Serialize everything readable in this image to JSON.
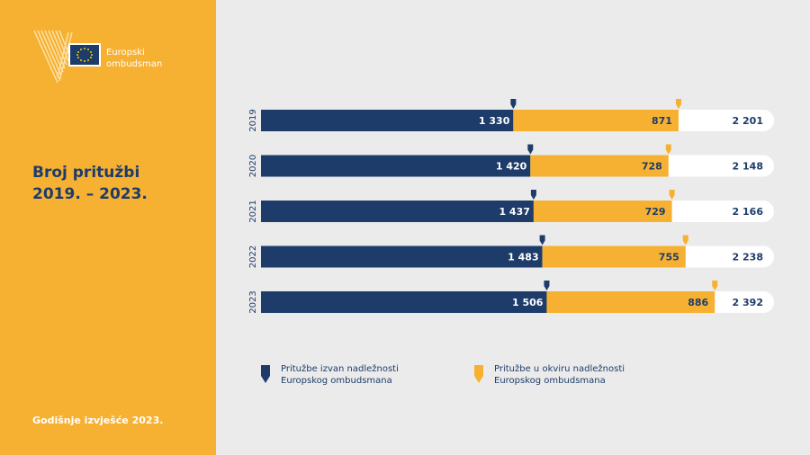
{
  "brand": {
    "name": "Europski\nombudsman"
  },
  "title": "Broj pritužbi\n2019. – 2023.",
  "footer": "Godišnje izvješće 2023.",
  "colors": {
    "navy": "#1d3c6a",
    "orange": "#f7b132",
    "white": "#ffffff"
  },
  "legend": [
    {
      "label": "Pritužbe izvan nadležnosti\nEuropskog ombudsmana",
      "color": "#1d3c6a",
      "icon": "navy-marker-icon"
    },
    {
      "label": "Pritužbe u okviru nadležnosti\nEuropskog ombudsmana",
      "color": "#f7b132",
      "icon": "orange-marker-icon"
    }
  ],
  "chart_data": {
    "type": "bar",
    "orientation": "horizontal",
    "stacked": true,
    "categories": [
      "2019",
      "2020",
      "2021",
      "2022",
      "2023"
    ],
    "series": [
      {
        "name": "Pritužbe izvan nadležnosti Europskog ombudsmana",
        "color": "#1d3c6a",
        "values": [
          1330,
          1420,
          1437,
          1483,
          1506
        ],
        "labels": [
          "1 330",
          "1 420",
          "1 437",
          "1 483",
          "1 506"
        ]
      },
      {
        "name": "Pritužbe u okviru nadležnosti Europskog ombudsmana",
        "color": "#f7b132",
        "values": [
          871,
          728,
          729,
          755,
          886
        ],
        "labels": [
          "871",
          "728",
          "729",
          "755",
          "886"
        ]
      }
    ],
    "totals": [
      2201,
      2148,
      2166,
      2238,
      2392
    ],
    "total_labels": [
      "2 201",
      "2 148",
      "2 166",
      "2 238",
      "2 392"
    ],
    "grid": false,
    "legend_position": "bottom"
  }
}
